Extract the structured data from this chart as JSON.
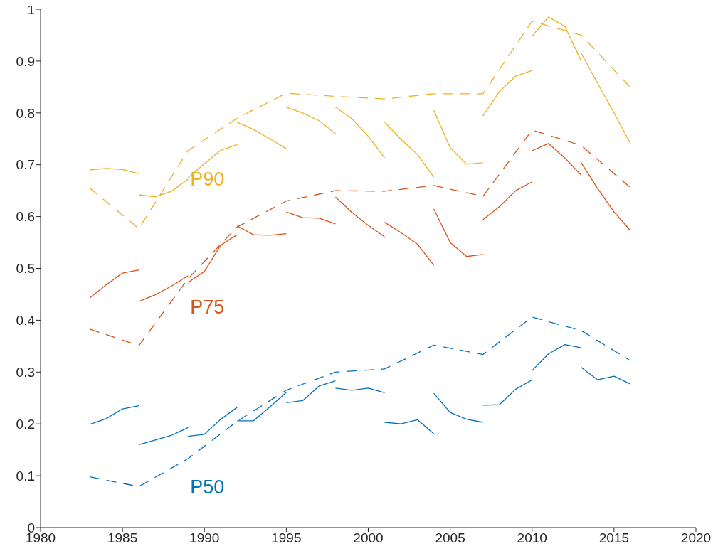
{
  "chart_data": {
    "type": "line",
    "xlim": [
      1980,
      2020
    ],
    "xticks": [
      1980,
      1985,
      1990,
      1995,
      2000,
      2005,
      2010,
      2015,
      2020
    ],
    "ylim": [
      0,
      1
    ],
    "yticks": [
      0,
      0.1,
      0.2,
      0.3,
      0.4,
      0.5,
      0.6,
      0.7,
      0.8,
      0.9,
      1
    ],
    "grid": false,
    "marker": "none",
    "series": [
      {
        "name": "P90",
        "color": "#edb120",
        "line_style": "dashed",
        "x": [
          1983,
          1986,
          1989,
          1992,
          1995,
          1998,
          2001,
          2004,
          2007,
          2010,
          2013,
          2016
        ],
        "values": [
          0.655,
          0.577,
          0.727,
          0.79,
          0.838,
          0.832,
          0.827,
          0.837,
          0.837,
          0.977,
          0.95,
          0.849
        ]
      },
      {
        "color": "#edb120",
        "line_style": "solid",
        "x": [
          1983,
          1984,
          1985,
          1986
        ],
        "values": [
          0.69,
          0.693,
          0.691,
          0.683
        ]
      },
      {
        "color": "#edb120",
        "line_style": "solid",
        "x": [
          1986,
          1987,
          1988,
          1989
        ],
        "values": [
          0.642,
          0.638,
          0.649,
          0.672
        ]
      },
      {
        "color": "#edb120",
        "line_style": "solid",
        "x": [
          1989,
          1990,
          1991,
          1992
        ],
        "values": [
          0.675,
          0.702,
          0.728,
          0.739
        ]
      },
      {
        "color": "#edb120",
        "line_style": "solid",
        "x": [
          1992,
          1993,
          1994,
          1995
        ],
        "values": [
          0.782,
          0.768,
          0.75,
          0.731
        ]
      },
      {
        "color": "#edb120",
        "line_style": "solid",
        "x": [
          1995,
          1996,
          1997,
          1998
        ],
        "values": [
          0.811,
          0.8,
          0.785,
          0.76
        ]
      },
      {
        "color": "#edb120",
        "line_style": "solid",
        "x": [
          1998,
          1999,
          2000,
          2001
        ],
        "values": [
          0.811,
          0.789,
          0.755,
          0.713
        ]
      },
      {
        "color": "#edb120",
        "line_style": "solid",
        "x": [
          2001,
          2002,
          2003,
          2004
        ],
        "values": [
          0.782,
          0.749,
          0.72,
          0.676
        ]
      },
      {
        "color": "#edb120",
        "line_style": "solid",
        "x": [
          2004,
          2005,
          2006,
          2007
        ],
        "values": [
          0.805,
          0.733,
          0.701,
          0.704
        ]
      },
      {
        "color": "#edb120",
        "line_style": "solid",
        "x": [
          2007,
          2008,
          2009,
          2010
        ],
        "values": [
          0.794,
          0.841,
          0.871,
          0.882
        ]
      },
      {
        "color": "#edb120",
        "line_style": "solid",
        "x": [
          2010,
          2011,
          2012,
          2013
        ],
        "values": [
          0.948,
          0.985,
          0.967,
          0.9
        ]
      },
      {
        "color": "#edb120",
        "line_style": "solid",
        "x": [
          2013,
          2014,
          2015,
          2016
        ],
        "values": [
          0.915,
          0.857,
          0.8,
          0.741
        ]
      },
      {
        "name": "P75",
        "color": "#d95319",
        "line_style": "dashed",
        "x": [
          1983,
          1986,
          1989,
          1992,
          1995,
          1998,
          2001,
          2004,
          2007,
          2010,
          2013,
          2016
        ],
        "values": [
          0.383,
          0.351,
          0.48,
          0.58,
          0.63,
          0.65,
          0.649,
          0.66,
          0.639,
          0.767,
          0.737,
          0.656
        ]
      },
      {
        "color": "#d95319",
        "line_style": "solid",
        "x": [
          1983,
          1984,
          1985,
          1986
        ],
        "values": [
          0.443,
          0.468,
          0.491,
          0.497
        ]
      },
      {
        "color": "#d95319",
        "line_style": "solid",
        "x": [
          1986,
          1987,
          1988,
          1989
        ],
        "values": [
          0.436,
          0.449,
          0.466,
          0.486
        ]
      },
      {
        "color": "#d95319",
        "line_style": "solid",
        "x": [
          1989,
          1990,
          1991,
          1992
        ],
        "values": [
          0.473,
          0.494,
          0.545,
          0.565
        ]
      },
      {
        "color": "#d95319",
        "line_style": "solid",
        "x": [
          1992,
          1993,
          1994,
          1995
        ],
        "values": [
          0.582,
          0.565,
          0.564,
          0.567
        ]
      },
      {
        "color": "#d95319",
        "line_style": "solid",
        "x": [
          1995,
          1996,
          1997,
          1998
        ],
        "values": [
          0.609,
          0.598,
          0.597,
          0.586
        ]
      },
      {
        "color": "#d95319",
        "line_style": "solid",
        "x": [
          1998,
          1999,
          2000,
          2001
        ],
        "values": [
          0.638,
          0.608,
          0.583,
          0.561
        ]
      },
      {
        "color": "#d95319",
        "line_style": "solid",
        "x": [
          2001,
          2002,
          2003,
          2004
        ],
        "values": [
          0.589,
          0.569,
          0.547,
          0.506
        ]
      },
      {
        "color": "#d95319",
        "line_style": "solid",
        "x": [
          2004,
          2005,
          2006,
          2007
        ],
        "values": [
          0.615,
          0.55,
          0.523,
          0.527
        ]
      },
      {
        "color": "#d95319",
        "line_style": "solid",
        "x": [
          2007,
          2008,
          2009,
          2010
        ],
        "values": [
          0.594,
          0.619,
          0.65,
          0.667
        ]
      },
      {
        "color": "#d95319",
        "line_style": "solid",
        "x": [
          2010,
          2011,
          2012,
          2013
        ],
        "values": [
          0.727,
          0.741,
          0.713,
          0.68
        ]
      },
      {
        "color": "#d95319",
        "line_style": "solid",
        "x": [
          2013,
          2014,
          2015,
          2016
        ],
        "values": [
          0.704,
          0.654,
          0.609,
          0.573
        ]
      },
      {
        "name": "P50",
        "color": "#0072bd",
        "line_style": "dashed",
        "x": [
          1983,
          1986,
          1989,
          1992,
          1995,
          1998,
          2001,
          2004,
          2007,
          2010,
          2013,
          2016
        ],
        "values": [
          0.098,
          0.079,
          0.133,
          0.205,
          0.265,
          0.3,
          0.306,
          0.352,
          0.334,
          0.406,
          0.38,
          0.322
        ]
      },
      {
        "color": "#0072bd",
        "line_style": "solid",
        "x": [
          1983,
          1984,
          1985,
          1986
        ],
        "values": [
          0.199,
          0.21,
          0.229,
          0.235
        ]
      },
      {
        "color": "#0072bd",
        "line_style": "solid",
        "x": [
          1986,
          1987,
          1988,
          1989
        ],
        "values": [
          0.16,
          0.169,
          0.178,
          0.193
        ]
      },
      {
        "color": "#0072bd",
        "line_style": "solid",
        "x": [
          1989,
          1990,
          1991,
          1992
        ],
        "values": [
          0.176,
          0.18,
          0.209,
          0.232
        ]
      },
      {
        "color": "#0072bd",
        "line_style": "solid",
        "x": [
          1992,
          1993,
          1994,
          1995
        ],
        "values": [
          0.206,
          0.206,
          0.233,
          0.261
        ]
      },
      {
        "color": "#0072bd",
        "line_style": "solid",
        "x": [
          1995,
          1996,
          1997,
          1998
        ],
        "values": [
          0.241,
          0.245,
          0.273,
          0.283
        ]
      },
      {
        "color": "#0072bd",
        "line_style": "solid",
        "x": [
          1998,
          1999,
          2000,
          2001
        ],
        "values": [
          0.269,
          0.265,
          0.269,
          0.26
        ]
      },
      {
        "color": "#0072bd",
        "line_style": "solid",
        "x": [
          2001,
          2002,
          2003,
          2004
        ],
        "values": [
          0.203,
          0.2,
          0.208,
          0.181
        ]
      },
      {
        "color": "#0072bd",
        "line_style": "solid",
        "x": [
          2004,
          2005,
          2006,
          2007
        ],
        "values": [
          0.259,
          0.222,
          0.209,
          0.203
        ]
      },
      {
        "color": "#0072bd",
        "line_style": "solid",
        "x": [
          2007,
          2008,
          2009,
          2010
        ],
        "values": [
          0.236,
          0.237,
          0.267,
          0.285
        ]
      },
      {
        "color": "#0072bd",
        "line_style": "solid",
        "x": [
          2010,
          2011,
          2012,
          2013
        ],
        "values": [
          0.303,
          0.335,
          0.353,
          0.347
        ]
      },
      {
        "color": "#0072bd",
        "line_style": "solid",
        "x": [
          2013,
          2014,
          2015,
          2016
        ],
        "values": [
          0.309,
          0.285,
          0.292,
          0.277
        ]
      }
    ]
  }
}
